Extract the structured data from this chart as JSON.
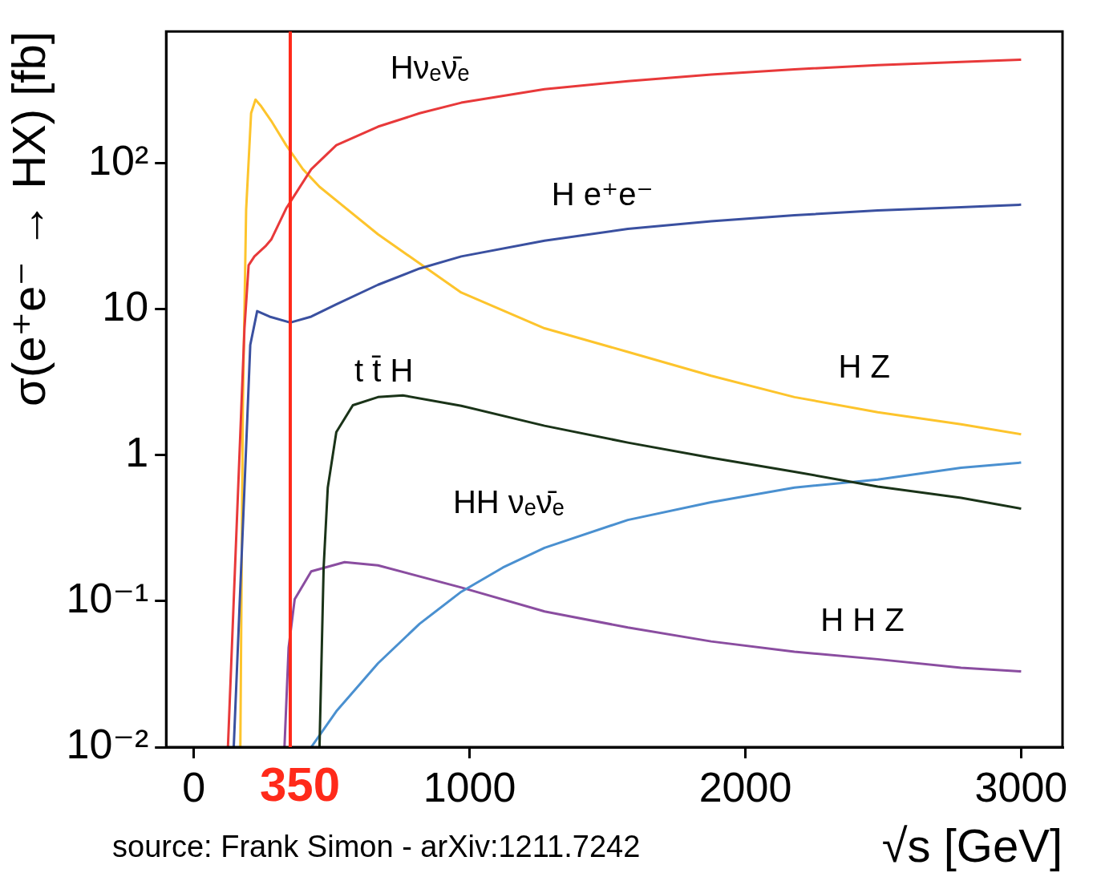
{
  "chart_data": {
    "type": "line",
    "xlabel": "√s [GeV]",
    "ylabel": "σ(e⁺e⁻ → HX) [fb]",
    "log": "y",
    "xlim": [
      -100,
      3150
    ],
    "xticks": [
      0,
      1000,
      2000,
      3000
    ],
    "ylim": [
      0.01,
      800
    ],
    "yticks": [
      {
        "value": 0.01,
        "label": "10⁻²"
      },
      {
        "value": 0.1,
        "label": "10⁻¹"
      },
      1,
      10,
      {
        "value": 100,
        "label": "10²"
      }
    ],
    "legend": false,
    "grid": false,
    "ref_lines": [
      {
        "axis": "x",
        "value": 350,
        "label": "350",
        "color": "#ff2a1a"
      }
    ],
    "annotations": [
      "source: Frank Simon - arXiv:1211.7242"
    ],
    "series": [
      {
        "name": "Hνₑν̄ₑ",
        "color": "#e8393a",
        "x": [
          124,
          184,
          199,
          220,
          260,
          281,
          335,
          426,
          517,
          668,
          819,
          970,
          1272,
          1574,
          1876,
          2178,
          2480,
          2782,
          3000
        ],
        "values": [
          0.01,
          7.4,
          20,
          23,
          27,
          30,
          49,
          91,
          133,
          178,
          220,
          260,
          322,
          365,
          405,
          440,
          470,
          495,
          512
        ]
      },
      {
        "name": "H e⁺e⁻",
        "color": "#3a50a0",
        "x": [
          145,
          184,
          205,
          230,
          275,
          350,
          426,
          517,
          668,
          819,
          970,
          1272,
          1574,
          1876,
          2178,
          2480,
          2782,
          3000
        ],
        "values": [
          0.01,
          0.6,
          5.7,
          9.7,
          8.9,
          8.1,
          8.9,
          10.8,
          14.7,
          19,
          23,
          29.5,
          35.5,
          40,
          44,
          47.5,
          50,
          52
        ]
      },
      {
        "name": "H Z",
        "color": "#fdc42c",
        "x": [
          169,
          178,
          190,
          208,
          224,
          245,
          281,
          335,
          396,
          456,
          668,
          970,
          1272,
          1574,
          1876,
          2178,
          2480,
          2782,
          3000
        ],
        "values": [
          0.01,
          2.1,
          48,
          220,
          273,
          245,
          195,
          133,
          91,
          69,
          32.6,
          13,
          7.4,
          5.1,
          3.5,
          2.5,
          1.97,
          1.63,
          1.39
        ]
      },
      {
        "name": "t t̄ H",
        "color": "#1a3318",
        "x": [
          456,
          471,
          486,
          517,
          577,
          668,
          758,
          970,
          1272,
          1574,
          1876,
          2178,
          2480,
          2782,
          3000
        ],
        "values": [
          0.01,
          0.17,
          0.6,
          1.44,
          2.2,
          2.5,
          2.57,
          2.18,
          1.59,
          1.22,
          0.96,
          0.77,
          0.61,
          0.51,
          0.43
        ]
      },
      {
        "name": "HH νₑν̄ₑ",
        "color": "#4a90d0",
        "x": [
          426,
          517,
          668,
          819,
          970,
          1121,
          1272,
          1574,
          1876,
          2178,
          2480,
          2782,
          3000
        ],
        "values": [
          0.01,
          0.0176,
          0.0375,
          0.07,
          0.116,
          0.17,
          0.232,
          0.36,
          0.476,
          0.6,
          0.68,
          0.82,
          0.89
        ]
      },
      {
        "name": "H H Z",
        "color": "#8a4da0",
        "x": [
          329,
          344,
          366,
          426,
          547,
          668,
          970,
          1272,
          1574,
          1876,
          2178,
          2480,
          2782,
          3000
        ],
        "values": [
          0.01,
          0.048,
          0.103,
          0.16,
          0.185,
          0.176,
          0.124,
          0.085,
          0.066,
          0.053,
          0.045,
          0.04,
          0.035,
          0.033
        ]
      }
    ]
  }
}
